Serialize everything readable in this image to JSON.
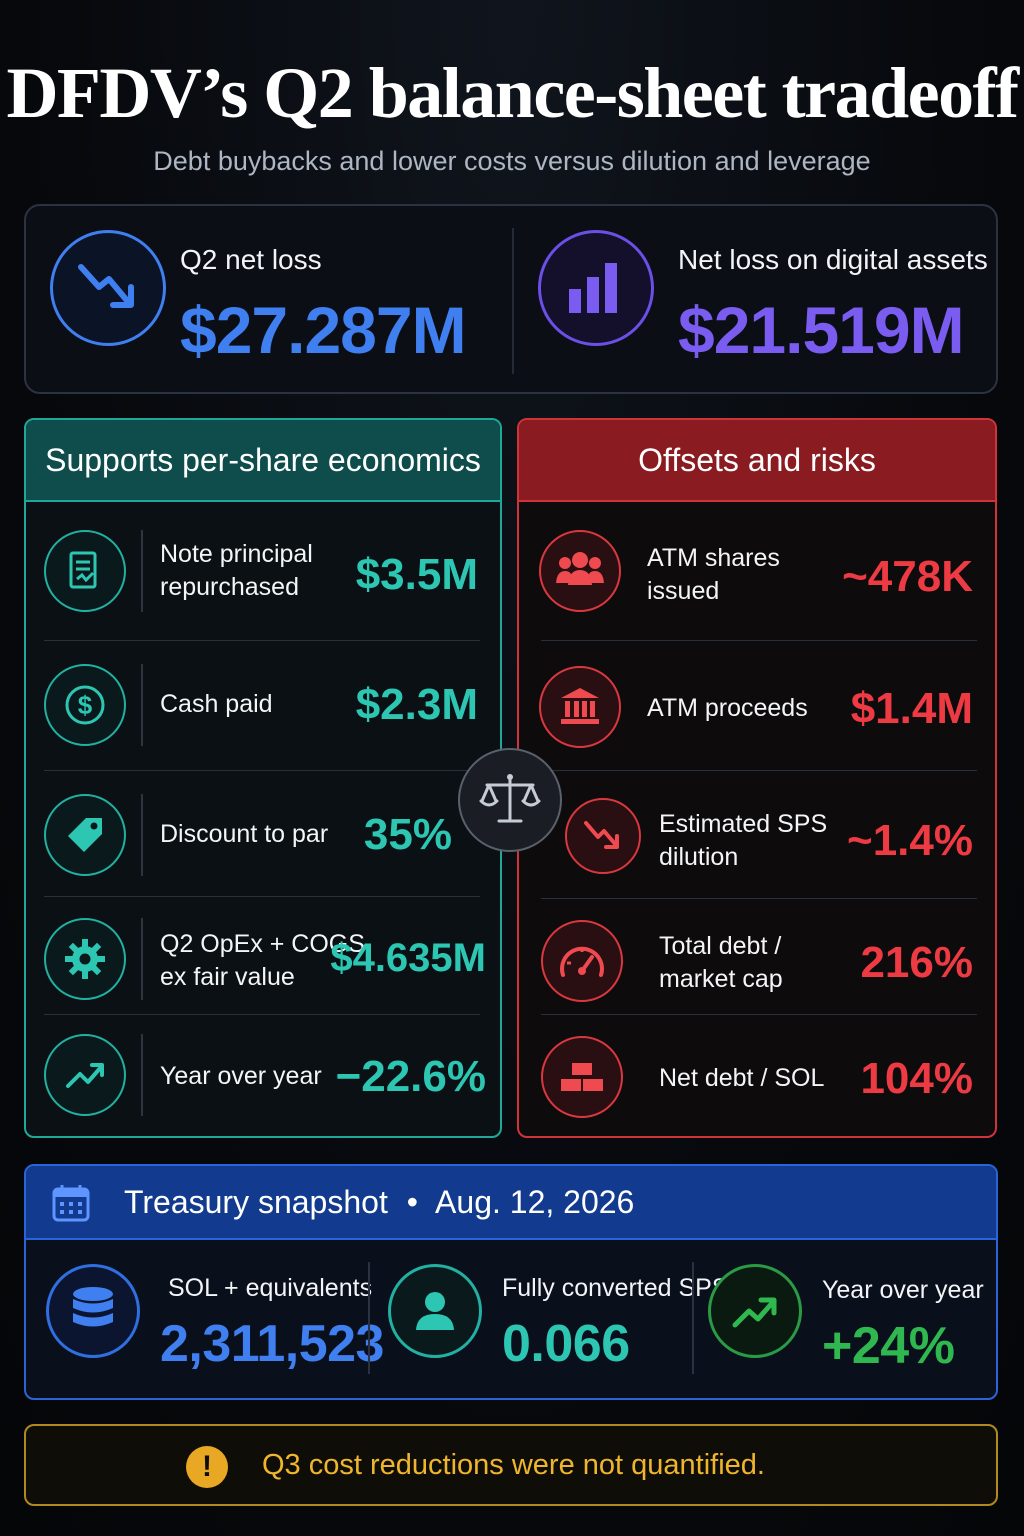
{
  "header": {
    "title": "DFDV’s Q2 balance-sheet tradeoff",
    "subtitle": "Debt buybacks and lower costs versus dilution and leverage"
  },
  "kpis": [
    {
      "label": "Q2 net loss",
      "value": "$27.287M",
      "icon": "trend-down-icon",
      "color": "#3f7ff0"
    },
    {
      "label": "Net loss on digital assets",
      "value": "$21.519M",
      "icon": "bar-chart-icon",
      "color": "#7a5cf0"
    }
  ],
  "supports": {
    "title": "Supports per-share economics",
    "color": "#2cc6b3",
    "rows": [
      {
        "label": "Note principal repurchased",
        "label_lines": [
          "Note principal",
          "repurchased"
        ],
        "value": "$3.5M",
        "icon": "document-icon"
      },
      {
        "label": "Cash paid",
        "label_lines": [
          "Cash paid"
        ],
        "value": "$2.3M",
        "icon": "dollar-icon"
      },
      {
        "label": "Discount to par",
        "label_lines": [
          "Discount to par"
        ],
        "value": "35%",
        "icon": "tag-icon"
      },
      {
        "label": "Q2 OpEx + COGS ex fair value",
        "label_lines": [
          "Q2 OpEx + COGS",
          "ex fair value"
        ],
        "value": "$4.635M",
        "icon": "gear-icon"
      },
      {
        "label": "Year over year",
        "label_lines": [
          "Year over year"
        ],
        "value": "−22.6%",
        "icon": "trend-up-icon"
      }
    ]
  },
  "risks": {
    "title": "Offsets and risks",
    "color": "#ee3b43",
    "rows": [
      {
        "label": "ATM shares issued",
        "label_lines": [
          "ATM shares",
          "issued"
        ],
        "value": "~478K",
        "icon": "users-icon"
      },
      {
        "label": "ATM proceeds",
        "label_lines": [
          "ATM proceeds"
        ],
        "value": "$1.4M",
        "icon": "bank-icon"
      },
      {
        "label": "Estimated SPS dilution",
        "label_lines": [
          "Estimated SPS",
          "dilution"
        ],
        "value": "~1.4%",
        "icon": "trend-down-icon"
      },
      {
        "label": "Total debt / market cap",
        "label_lines": [
          "Total debt /",
          "market cap"
        ],
        "value": "216%",
        "icon": "gauge-icon"
      },
      {
        "label": "Net debt / SOL",
        "label_lines": [
          "Net debt / SOL"
        ],
        "value": "104%",
        "icon": "bricks-icon"
      }
    ]
  },
  "treasury": {
    "title": "Treasury snapshot",
    "separator": "•",
    "date": "Aug. 12, 2026",
    "items": [
      {
        "label": "SOL + equivalents",
        "value": "2,311,523",
        "icon": "database-icon",
        "color": "#3f7ff0"
      },
      {
        "label": "Fully converted SPS",
        "value": "0.066",
        "icon": "user-icon",
        "color": "#2cc6b3"
      },
      {
        "label": "Year over year",
        "value": "+24%",
        "icon": "trend-up-icon",
        "color": "#2fb84f"
      }
    ]
  },
  "note": {
    "icon": "!",
    "text": "Q3 cost reductions were not quantified."
  }
}
